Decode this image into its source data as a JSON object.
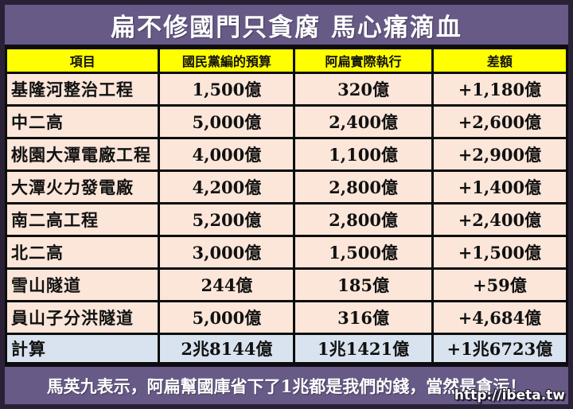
{
  "title": "扁不修國門只貪腐 馬心痛滴血",
  "colors": {
    "frame_purple": "#675a87",
    "outer_border": "#2a2136",
    "header_yellow": "#ffff00",
    "cell_peach": "#fbe6d9",
    "total_blue": "#d9e3ef",
    "grid_black": "#0d0d0d",
    "title_text": "#ffffff"
  },
  "table": {
    "headers": [
      "項目",
      "國民黨編的預算",
      "阿扁實際執行",
      "差額"
    ],
    "rows": [
      {
        "item": "基隆河整治工程",
        "budget": "1,500億",
        "actual": "320億",
        "diff": "+1,180億"
      },
      {
        "item": "中二高",
        "budget": "5,000億",
        "actual": "2,400億",
        "diff": "+2,600億"
      },
      {
        "item": "桃園大潭電廠工程",
        "budget": "4,000億",
        "actual": "1,100億",
        "diff": "+2,900億"
      },
      {
        "item": "大潭火力發電廠",
        "budget": "4,200億",
        "actual": "2,800億",
        "diff": "+1,400億"
      },
      {
        "item": "南二高工程",
        "budget": "5,200億",
        "actual": "2,800億",
        "diff": "+2,400億"
      },
      {
        "item": "北二高",
        "budget": "3,000億",
        "actual": "1,500億",
        "diff": "+1,500億"
      },
      {
        "item": "雪山隧道",
        "budget": "244億",
        "actual": "185億",
        "diff": "+59億"
      },
      {
        "item": "員山子分洪隧道",
        "budget": "5,000億",
        "actual": "316億",
        "diff": "+4,684億"
      }
    ],
    "total_row": {
      "item": "計算",
      "budget": "2兆8144億",
      "actual": "1兆1421億",
      "diff": "+1兆6723億"
    }
  },
  "footer": {
    "caption": "馬英九表示，阿扁幫國庫省下了1兆都是我們的錢，當然是貪污！",
    "watermark": "http://ibeta.tw"
  }
}
